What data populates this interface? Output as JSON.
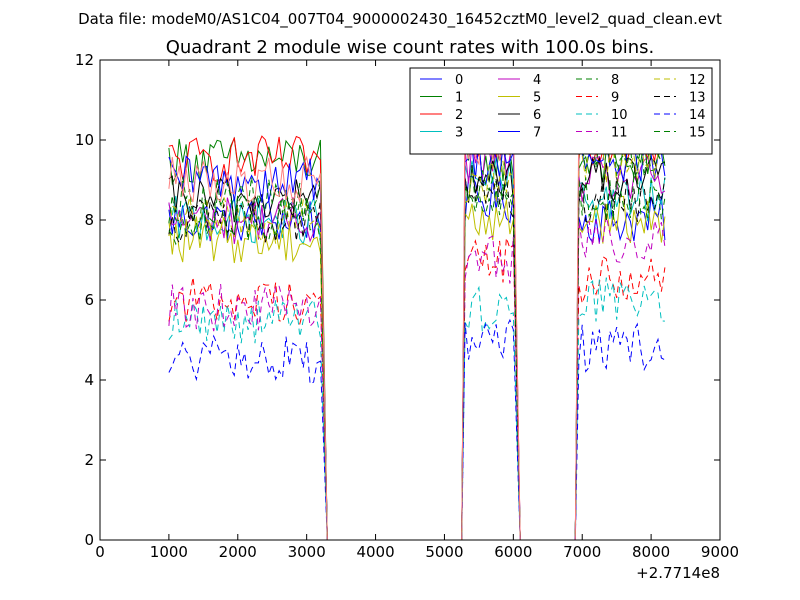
{
  "chart_data": {
    "type": "line",
    "suptitle": "Data file: modeM0/AS1C04_007T04_9000002430_16452cztM0_level2_quad_clean.evt",
    "title": "Quadrant 2 module wise count rates with 100.0s bins.",
    "xlabel": "",
    "ylabel": "",
    "x_offset_label": "+2.7714e8",
    "xlim": [
      0,
      9000
    ],
    "ylim": [
      0,
      12
    ],
    "x_ticks": [
      0,
      1000,
      2000,
      3000,
      4000,
      5000,
      6000,
      7000,
      8000,
      9000
    ],
    "y_ticks": [
      0,
      2,
      4,
      6,
      8,
      10,
      12
    ],
    "legend": {
      "placement": "top-right",
      "columns": 4
    },
    "time_segments": [
      {
        "start": 1000,
        "end": 3200,
        "drop_to": 3300
      },
      {
        "start": 5300,
        "end": 6000,
        "rise_from": 5250,
        "drop_to": 6100
      },
      {
        "start": 6950,
        "end": 8200,
        "rise_from": 6900
      }
    ],
    "series": [
      {
        "name": "0",
        "color": "#0000ff",
        "dash": "solid",
        "levels": [
          8.0,
          8.5,
          8.0
        ]
      },
      {
        "name": "1",
        "color": "#008000",
        "dash": "solid",
        "levels": [
          9.5,
          9.5,
          9.5
        ]
      },
      {
        "name": "2",
        "color": "#ff0000",
        "dash": "solid",
        "levels": [
          9.5,
          10.0,
          10.0
        ]
      },
      {
        "name": "3",
        "color": "#00bfbf",
        "dash": "solid",
        "levels": [
          8.0,
          9.0,
          8.5
        ]
      },
      {
        "name": "4",
        "color": "#bf00bf",
        "dash": "solid",
        "levels": [
          8.0,
          9.5,
          9.0
        ]
      },
      {
        "name": "5",
        "color": "#bfbf00",
        "dash": "solid",
        "levels": [
          7.5,
          8.0,
          8.0
        ]
      },
      {
        "name": "6",
        "color": "#000000",
        "dash": "solid",
        "levels": [
          8.5,
          9.0,
          9.0
        ]
      },
      {
        "name": "7",
        "color": "#0000ff",
        "dash": "solid",
        "levels": [
          9.0,
          9.5,
          9.5
        ]
      },
      {
        "name": "8",
        "color": "#008000",
        "dash": "dashed",
        "levels": [
          8.5,
          9.0,
          9.5
        ]
      },
      {
        "name": "9",
        "color": "#ff0000",
        "dash": "dashed",
        "levels": [
          6.0,
          7.0,
          6.5
        ]
      },
      {
        "name": "10",
        "color": "#00bfbf",
        "dash": "dashed",
        "levels": [
          5.5,
          5.8,
          6.0
        ]
      },
      {
        "name": "11",
        "color": "#bf00bf",
        "dash": "dashed",
        "levels": [
          5.8,
          7.0,
          7.5
        ]
      },
      {
        "name": "12",
        "color": "#bfbf00",
        "dash": "dashed",
        "levels": [
          8.0,
          9.0,
          9.5
        ]
      },
      {
        "name": "13",
        "color": "#000000",
        "dash": "dashed",
        "levels": [
          8.0,
          8.5,
          8.5
        ]
      },
      {
        "name": "14",
        "color": "#0000ff",
        "dash": "dashed",
        "levels": [
          4.5,
          5.0,
          4.8
        ]
      },
      {
        "name": "15",
        "color": "#008000",
        "dash": "dashed",
        "levels": [
          8.0,
          8.5,
          8.5
        ]
      },
      {
        "name": "",
        "color": "#ff8080",
        "dash": "solid",
        "levels": [
          9.0,
          10.0,
          10.3
        ]
      }
    ]
  }
}
